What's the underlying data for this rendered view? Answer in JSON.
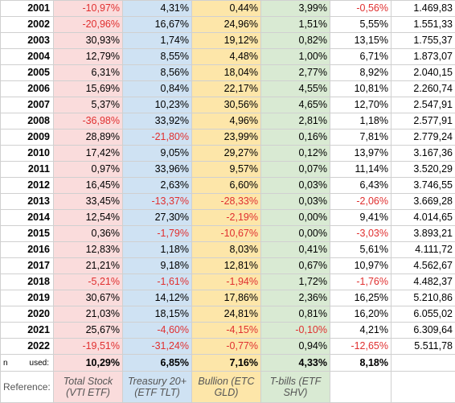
{
  "rows": [
    {
      "year": "2001",
      "v1": "-10,97%",
      "v2": "4,31%",
      "v3": "0,44%",
      "v4": "3,99%",
      "v5": "-0,56%",
      "v6": "1.469,83"
    },
    {
      "year": "2002",
      "v1": "-20,96%",
      "v2": "16,67%",
      "v3": "24,96%",
      "v4": "1,51%",
      "v5": "5,55%",
      "v6": "1.551,33"
    },
    {
      "year": "2003",
      "v1": "30,93%",
      "v2": "1,74%",
      "v3": "19,12%",
      "v4": "0,82%",
      "v5": "13,15%",
      "v6": "1.755,37"
    },
    {
      "year": "2004",
      "v1": "12,79%",
      "v2": "8,55%",
      "v3": "4,48%",
      "v4": "1,00%",
      "v5": "6,71%",
      "v6": "1.873,07"
    },
    {
      "year": "2005",
      "v1": "6,31%",
      "v2": "8,56%",
      "v3": "18,04%",
      "v4": "2,77%",
      "v5": "8,92%",
      "v6": "2.040,15"
    },
    {
      "year": "2006",
      "v1": "15,69%",
      "v2": "0,84%",
      "v3": "22,17%",
      "v4": "4,55%",
      "v5": "10,81%",
      "v6": "2.260,74"
    },
    {
      "year": "2007",
      "v1": "5,37%",
      "v2": "10,23%",
      "v3": "30,56%",
      "v4": "4,65%",
      "v5": "12,70%",
      "v6": "2.547,91"
    },
    {
      "year": "2008",
      "v1": "-36,98%",
      "v2": "33,92%",
      "v3": "4,96%",
      "v4": "2,81%",
      "v5": "1,18%",
      "v6": "2.577,91"
    },
    {
      "year": "2009",
      "v1": "28,89%",
      "v2": "-21,80%",
      "v3": "23,99%",
      "v4": "0,16%",
      "v5": "7,81%",
      "v6": "2.779,24"
    },
    {
      "year": "2010",
      "v1": "17,42%",
      "v2": "9,05%",
      "v3": "29,27%",
      "v4": "0,12%",
      "v5": "13,97%",
      "v6": "3.167,36"
    },
    {
      "year": "2011",
      "v1": "0,97%",
      "v2": "33,96%",
      "v3": "9,57%",
      "v4": "0,07%",
      "v5": "11,14%",
      "v6": "3.520,29"
    },
    {
      "year": "2012",
      "v1": "16,45%",
      "v2": "2,63%",
      "v3": "6,60%",
      "v4": "0,03%",
      "v5": "6,43%",
      "v6": "3.746,55"
    },
    {
      "year": "2013",
      "v1": "33,45%",
      "v2": "-13,37%",
      "v3": "-28,33%",
      "v4": "0,03%",
      "v5": "-2,06%",
      "v6": "3.669,28"
    },
    {
      "year": "2014",
      "v1": "12,54%",
      "v2": "27,30%",
      "v3": "-2,19%",
      "v4": "0,00%",
      "v5": "9,41%",
      "v6": "4.014,65"
    },
    {
      "year": "2015",
      "v1": "0,36%",
      "v2": "-1,79%",
      "v3": "-10,67%",
      "v4": "0,00%",
      "v5": "-3,03%",
      "v6": "3.893,21"
    },
    {
      "year": "2016",
      "v1": "12,83%",
      "v2": "1,18%",
      "v3": "8,03%",
      "v4": "0,41%",
      "v5": "5,61%",
      "v6": "4.111,72"
    },
    {
      "year": "2017",
      "v1": "21,21%",
      "v2": "9,18%",
      "v3": "12,81%",
      "v4": "0,67%",
      "v5": "10,97%",
      "v6": "4.562,67"
    },
    {
      "year": "2018",
      "v1": "-5,21%",
      "v2": "-1,61%",
      "v3": "-1,94%",
      "v4": "1,72%",
      "v5": "-1,76%",
      "v6": "4.482,37"
    },
    {
      "year": "2019",
      "v1": "30,67%",
      "v2": "14,12%",
      "v3": "17,86%",
      "v4": "2,36%",
      "v5": "16,25%",
      "v6": "5.210,86"
    },
    {
      "year": "2020",
      "v1": "21,03%",
      "v2": "18,15%",
      "v3": "24,81%",
      "v4": "0,81%",
      "v5": "16,20%",
      "v6": "6.055,02"
    },
    {
      "year": "2021",
      "v1": "25,67%",
      "v2": "-4,60%",
      "v3": "-4,15%",
      "v4": "-0,10%",
      "v5": "4,21%",
      "v6": "6.309,64"
    },
    {
      "year": "2022",
      "v1": "-19,51%",
      "v2": "-31,24%",
      "v3": "-0,77%",
      "v4": "0,94%",
      "v5": "-12,65%",
      "v6": "5.511,78"
    }
  ],
  "used": {
    "left": "n",
    "label": "used:",
    "v1": "10,29%",
    "v2": "6,85%",
    "v3": "7,16%",
    "v4": "4,33%",
    "v5": "8,18%",
    "v6": ""
  },
  "reference": {
    "label": "Reference:",
    "c1": "Total Stock (VTI ETF)",
    "c2": "Treasury 20+ (ETF TLT)",
    "c3": "Bullion (ETC GLD)",
    "c4": "T-bills (ETF SHV)",
    "c5": "",
    "c6": ""
  },
  "colors": {
    "negative": "#e03030",
    "stock_bg": "#fadcdc",
    "treasury_bg": "#cfe2f3",
    "bullion_bg": "#fde6a9",
    "tbills_bg": "#d9ead3"
  }
}
